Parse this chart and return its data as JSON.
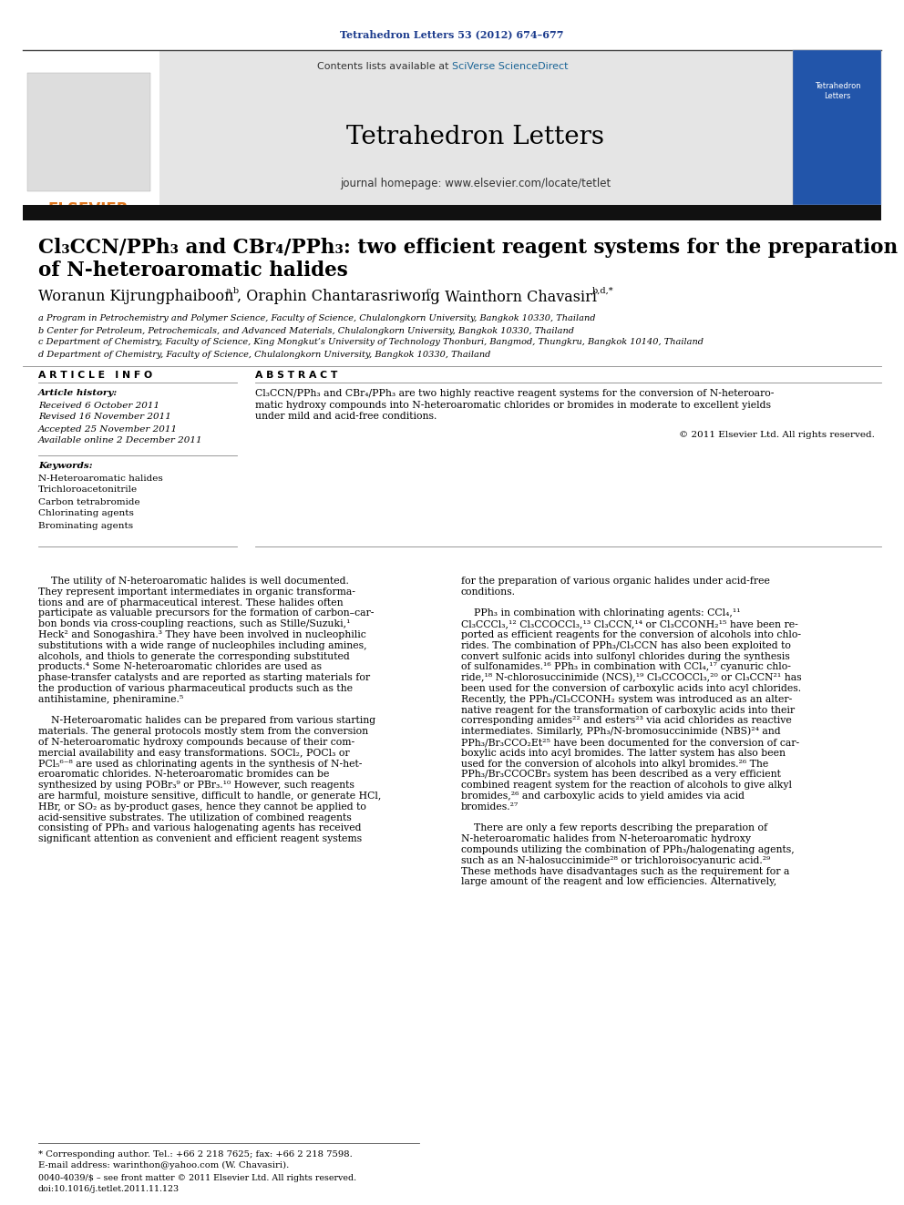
{
  "page_bg": "#ffffff",
  "header_journal_ref": "Tetrahedron Letters 53 (2012) 674–677",
  "header_journal_ref_color": "#1a3a8c",
  "journal_name": "Tetrahedron Letters",
  "journal_homepage": "journal homepage: www.elsevier.com/locate/tetlet",
  "contents_text": "Contents lists available at ",
  "sciverse_text": "SciVerse ScienceDirect",
  "sciverse_color": "#1a6496",
  "header_bg": "#e5e5e5",
  "title_color": "#000000",
  "authors_color": "#000000",
  "affil_a": "a Program in Petrochemistry and Polymer Science, Faculty of Science, Chulalongkorn University, Bangkok 10330, Thailand",
  "affil_b": "b Center for Petroleum, Petrochemicals, and Advanced Materials, Chulalongkorn University, Bangkok 10330, Thailand",
  "affil_c": "c Department of Chemistry, Faculty of Science, King Mongkut’s University of Technology Thonburi, Bangmod, Thungkru, Bangkok 10140, Thailand",
  "affil_d": "d Department of Chemistry, Faculty of Science, Chulalongkorn University, Bangkok 10330, Thailand",
  "article_info_header": "A R T I C L E   I N F O",
  "abstract_header": "A B S T R A C T",
  "article_history_label": "Article history:",
  "received": "Received 6 October 2011",
  "revised": "Revised 16 November 2011",
  "accepted": "Accepted 25 November 2011",
  "available": "Available online 2 December 2011",
  "keywords_label": "Keywords:",
  "keywords": [
    "N-Heteroaromatic halides",
    "Trichloroacetonitrile",
    "Carbon tetrabromide",
    "Chlorinating agents",
    "Brominating agents"
  ],
  "copyright": "© 2011 Elsevier Ltd. All rights reserved.",
  "footer_text1": "* Corresponding author. Tel.: +66 2 218 7625; fax: +66 2 218 7598.",
  "footer_text2": "E-mail address: warinthon@yahoo.com (W. Chavasiri).",
  "footer_issn": "0040-4039/$ – see front matter © 2011 Elsevier Ltd. All rights reserved.",
  "footer_doi": "doi:10.1016/j.tetlet.2011.11.123",
  "thick_bar_color": "#111111",
  "elsevier_color": "#e07820",
  "divider_color": "#888888",
  "line_color": "#555555",
  "abs_lines": [
    "Cl₃CCN/PPh₃ and CBr₄/PPh₃ are two highly reactive reagent systems for the conversion of N-heteroaro-",
    "matic hydroxy compounds into N-heteroaromatic chlorides or bromides in moderate to excellent yields",
    "under mild and acid-free conditions."
  ],
  "body1_lines": [
    "    The utility of N-heteroaromatic halides is well documented.",
    "They represent important intermediates in organic transforma-",
    "tions and are of pharmaceutical interest. These halides often",
    "participate as valuable precursors for the formation of carbon–car-",
    "bon bonds via cross-coupling reactions, such as Stille/Suzuki,¹",
    "Heck² and Sonogashira.³ They have been involved in nucleophilic",
    "substitutions with a wide range of nucleophiles including amines,",
    "alcohols, and thiols to generate the corresponding substituted",
    "products.⁴ Some N-heteroaromatic chlorides are used as",
    "phase-transfer catalysts and are reported as starting materials for",
    "the production of various pharmaceutical products such as the",
    "antihistamine, pheniramine.⁵",
    "",
    "    N-Heteroaromatic halides can be prepared from various starting",
    "materials. The general protocols mostly stem from the conversion",
    "of N-heteroaromatic hydroxy compounds because of their com-",
    "mercial availability and easy transformations. SOCl₂, POCl₃ or",
    "PCl₅⁶⁻⁸ are used as chlorinating agents in the synthesis of N-het-",
    "eroaromatic chlorides. N-heteroaromatic bromides can be",
    "synthesized by using POBr₃⁹ or PBr₃.¹⁰ However, such reagents",
    "are harmful, moisture sensitive, difficult to handle, or generate HCl,",
    "HBr, or SO₂ as by-product gases, hence they cannot be applied to",
    "acid-sensitive substrates. The utilization of combined reagents",
    "consisting of PPh₃ and various halogenating agents has received",
    "significant attention as convenient and efficient reagent systems"
  ],
  "body2_lines": [
    "for the preparation of various organic halides under acid-free",
    "conditions.",
    "",
    "    PPh₃ in combination with chlorinating agents: CCl₄,¹¹",
    "Cl₃CCCl₃,¹² Cl₃CCOCCl₃,¹³ Cl₃CCN,¹⁴ or Cl₃CCONH₂¹⁵ have been re-",
    "ported as efficient reagents for the conversion of alcohols into chlo-",
    "rides. The combination of PPh₃/Cl₃CCN has also been exploited to",
    "convert sulfonic acids into sulfonyl chlorides during the synthesis",
    "of sulfonamides.¹⁶ PPh₃ in combination with CCl₄,¹⁷ cyanuric chlo-",
    "ride,¹⁸ N-chlorosuccinimide (NCS),¹⁹ Cl₃CCOCCl₃,²⁰ or Cl₃CCN²¹ has",
    "been used for the conversion of carboxylic acids into acyl chlorides.",
    "Recently, the PPh₃/Cl₃CCONH₂ system was introduced as an alter-",
    "native reagent for the transformation of carboxylic acids into their",
    "corresponding amides²² and esters²³ via acid chlorides as reactive",
    "intermediates. Similarly, PPh₃/N-bromosuccinimide (NBS)²⁴ and",
    "PPh₃/Br₃CCO₂Et²⁵ have been documented for the conversion of car-",
    "boxylic acids into acyl bromides. The latter system has also been",
    "used for the conversion of alcohols into alkyl bromides.²⁶ The",
    "PPh₃/Br₃CCOCBr₃ system has been described as a very efficient",
    "combined reagent system for the reaction of alcohols to give alkyl",
    "bromides,²⁶ and carboxylic acids to yield amides via acid",
    "bromides.²⁷",
    "",
    "    There are only a few reports describing the preparation of",
    "N-heteroaromatic halides from N-heteroaromatic hydroxy",
    "compounds utilizing the combination of PPh₃/halogenating agents,",
    "such as an N-halosuccinimide²⁸ or trichloroisocyanuric acid.²⁹",
    "These methods have disadvantages such as the requirement for a",
    "large amount of the reagent and low efficiencies. Alternatively,"
  ]
}
